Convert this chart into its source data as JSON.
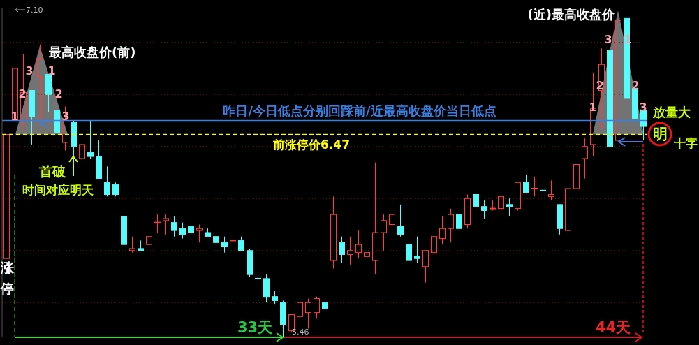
{
  "chart_data": {
    "type": "candlestick",
    "categories": [
      null,
      null,
      null,
      null,
      null,
      null,
      null,
      null,
      null,
      null,
      null,
      null,
      null,
      null,
      null,
      null,
      null,
      null,
      null,
      null,
      null,
      null,
      null,
      null,
      null,
      null,
      null,
      null,
      null,
      null,
      null,
      null,
      null,
      null,
      null,
      null,
      null,
      null,
      null,
      null,
      null,
      null,
      null,
      null,
      null,
      null,
      null,
      null,
      null,
      null,
      null,
      null,
      null,
      null,
      null,
      null,
      null,
      null,
      null,
      null,
      null,
      null,
      null,
      null,
      null,
      null,
      null,
      null,
      null,
      null,
      null,
      null,
      null,
      null,
      null,
      null,
      null
    ],
    "ohlc": [
      [
        5.85,
        6.47,
        5.85,
        6.47
      ],
      [
        6.54,
        7.1,
        6.33,
        6.8
      ],
      [
        6.54,
        6.87,
        6.5,
        6.68
      ],
      [
        6.69,
        6.69,
        6.42,
        6.56
      ],
      [
        6.76,
        6.92,
        6.54,
        6.85
      ],
      [
        6.77,
        6.77,
        6.58,
        6.67
      ],
      [
        6.59,
        6.59,
        6.34,
        6.48
      ],
      [
        6.43,
        6.61,
        6.39,
        6.54
      ],
      [
        6.53,
        6.54,
        6.36,
        6.41
      ],
      [
        6.35,
        6.42,
        6.23,
        6.42
      ],
      [
        6.38,
        6.54,
        6.35,
        6.36
      ],
      [
        6.36,
        6.44,
        6.25,
        6.25
      ],
      [
        6.23,
        6.31,
        6.16,
        6.17
      ],
      [
        6.22,
        6.23,
        6.16,
        6.17
      ],
      [
        6.06,
        6.07,
        5.9,
        5.92
      ],
      [
        5.89,
        5.96,
        5.88,
        5.9
      ],
      [
        5.9,
        5.94,
        5.89,
        5.89
      ],
      [
        5.92,
        5.97,
        5.92,
        5.96
      ],
      [
        6.03,
        6.07,
        5.98,
        6.03
      ],
      [
        6.04,
        6.07,
        5.97,
        6.05
      ],
      [
        6.03,
        6.06,
        5.96,
        5.99
      ],
      [
        6.0,
        6.03,
        5.95,
        5.97
      ],
      [
        6.01,
        6.02,
        5.96,
        5.98
      ],
      [
        5.99,
        6.02,
        5.93,
        6.0
      ],
      [
        5.98,
        6.0,
        5.96,
        5.96
      ],
      [
        5.96,
        5.96,
        5.91,
        5.93
      ],
      [
        5.93,
        5.96,
        5.88,
        5.91
      ],
      [
        5.94,
        5.97,
        5.9,
        5.94
      ],
      [
        5.94,
        5.96,
        5.89,
        5.89
      ],
      [
        5.89,
        5.9,
        5.76,
        5.77
      ],
      [
        5.75,
        5.79,
        5.72,
        5.75
      ],
      [
        5.75,
        5.77,
        5.63,
        5.66
      ],
      [
        5.66,
        5.69,
        5.62,
        5.64
      ],
      [
        5.63,
        5.64,
        5.46,
        5.52
      ],
      [
        5.49,
        5.57,
        5.48,
        5.57
      ],
      [
        5.56,
        5.72,
        5.55,
        5.63
      ],
      [
        5.58,
        5.65,
        5.5,
        5.63
      ],
      [
        5.58,
        5.66,
        5.55,
        5.65
      ],
      [
        5.63,
        5.65,
        5.56,
        5.6
      ],
      [
        5.84,
        6.16,
        5.8,
        6.07
      ],
      [
        5.93,
        5.96,
        5.83,
        5.87
      ],
      [
        5.87,
        5.96,
        5.82,
        5.89
      ],
      [
        5.88,
        5.99,
        5.85,
        5.92
      ],
      [
        5.86,
        5.96,
        5.83,
        5.88
      ],
      [
        5.84,
        6.33,
        5.77,
        5.98
      ],
      [
        5.98,
        6.07,
        5.89,
        6.04
      ],
      [
        6.02,
        6.12,
        6.01,
        6.07
      ],
      [
        6.01,
        6.12,
        5.96,
        5.97
      ],
      [
        5.92,
        5.97,
        5.82,
        5.84
      ],
      [
        5.86,
        5.96,
        5.83,
        5.85
      ],
      [
        5.81,
        5.89,
        5.73,
        5.89
      ],
      [
        5.88,
        5.96,
        5.88,
        5.96
      ],
      [
        5.95,
        6.06,
        5.92,
        6.0
      ],
      [
        6.0,
        6.1,
        5.93,
        6.07
      ],
      [
        6.07,
        6.09,
        5.99,
        6.0
      ],
      [
        6.02,
        6.17,
        6.0,
        6.15
      ],
      [
        6.17,
        6.17,
        6.06,
        6.11
      ],
      [
        6.11,
        6.14,
        6.05,
        6.09
      ],
      [
        6.1,
        6.14,
        6.09,
        6.1
      ],
      [
        6.1,
        6.24,
        6.09,
        6.16
      ],
      [
        6.12,
        6.15,
        6.06,
        6.11
      ],
      [
        6.1,
        6.23,
        6.09,
        6.23
      ],
      [
        6.23,
        6.27,
        6.18,
        6.18
      ],
      [
        6.2,
        6.26,
        6.16,
        6.2
      ],
      [
        6.19,
        6.26,
        6.11,
        6.19
      ],
      [
        6.16,
        6.24,
        6.14,
        6.17
      ],
      [
        6.12,
        6.12,
        5.97,
        6.0
      ],
      [
        5.99,
        6.35,
        5.98,
        6.2
      ],
      [
        6.2,
        6.32,
        6.2,
        6.32
      ],
      [
        6.35,
        6.45,
        6.25,
        6.41
      ],
      [
        6.42,
        6.78,
        6.36,
        6.6
      ],
      [
        6.69,
        6.9,
        6.5,
        6.82
      ],
      [
        6.89,
        6.89,
        6.39,
        6.41
      ],
      [
        6.44,
        7.04,
        6.44,
        7.04
      ],
      [
        7.05,
        7.05,
        6.65,
        6.65
      ],
      [
        6.7,
        6.7,
        6.53,
        6.55
      ],
      [
        6.59,
        6.59,
        6.44,
        6.51
      ]
    ],
    "colors": [
      "#ff3c3c",
      "#ff3c3c",
      "#ff3c3c",
      "#54fcfc",
      "#ff3c3c",
      "#54fcfc",
      "#54fcfc",
      "#ff3c3c",
      "#54fcfc",
      "#ff3c3c",
      "#54fcfc",
      "#54fcfc",
      "#54fcfc",
      "#54fcfc",
      "#54fcfc",
      "#ff3c3c",
      "#54fcfc",
      "#ff3c3c",
      "#ff3c3c",
      "#ff3c3c",
      "#54fcfc",
      "#54fcfc",
      "#54fcfc",
      "#ff3c3c",
      "#54fcfc",
      "#54fcfc",
      "#54fcfc",
      "#ff3c3c",
      "#54fcfc",
      "#54fcfc",
      "#54fcfc",
      "#54fcfc",
      "#54fcfc",
      "#54fcfc",
      "#ff3c3c",
      "#ff3c3c",
      "#ff3c3c",
      "#ff3c3c",
      "#54fcfc",
      "#ff3c3c",
      "#54fcfc",
      "#ff3c3c",
      "#ff3c3c",
      "#ff3c3c",
      "#ff3c3c",
      "#ff3c3c",
      "#ff3c3c",
      "#54fcfc",
      "#54fcfc",
      "#54fcfc",
      "#ff3c3c",
      "#ff3c3c",
      "#ff3c3c",
      "#ff3c3c",
      "#54fcfc",
      "#ff3c3c",
      "#54fcfc",
      "#54fcfc",
      "#ff3c3c",
      "#ff3c3c",
      "#54fcfc",
      "#ff3c3c",
      "#54fcfc",
      "#ff3c3c",
      "#54fcfc",
      "#ff3c3c",
      "#54fcfc",
      "#ff3c3c",
      "#ff3c3c",
      "#ff3c3c",
      "#ff3c3c",
      "#ff3c3c",
      "#54fcfc",
      "#ff3c3c",
      "#54fcfc",
      "#54fcfc",
      "#54fcfc"
    ],
    "ylim": [
      5.46,
      7.1
    ],
    "yticks": [
      {
        "value": 5.63,
        "label": null
      },
      {
        "value": 5.89,
        "label": null
      },
      {
        "value": 6.15,
        "label": null
      },
      {
        "value": 6.41,
        "label": null
      },
      {
        "value": 6.67,
        "label": null
      },
      {
        "value": 6.93,
        "label": null
      }
    ],
    "grid": "y",
    "ref_lines": [
      {
        "axis": "y",
        "value": 6.47,
        "label": "前涨停价6.47",
        "color": "#ffff00",
        "line_style": "dashed"
      },
      {
        "axis": "y",
        "value": 6.54,
        "label": "昨日/今日低点分别回踩前/近最高收盘价当日低点",
        "color": "#3a7fe0",
        "line_style": "solid"
      }
    ],
    "annotations": [
      "最高收盘价(前)",
      "(近)最高收盘价",
      "首破",
      "时间对应明天",
      "涨停",
      "放量大",
      "明",
      "十字",
      "33天",
      "44天",
      "7.10",
      "5.46",
      "1",
      "2",
      "3",
      "1",
      "2",
      "3",
      "1",
      "2",
      "3",
      "1",
      "2",
      "3"
    ]
  }
}
